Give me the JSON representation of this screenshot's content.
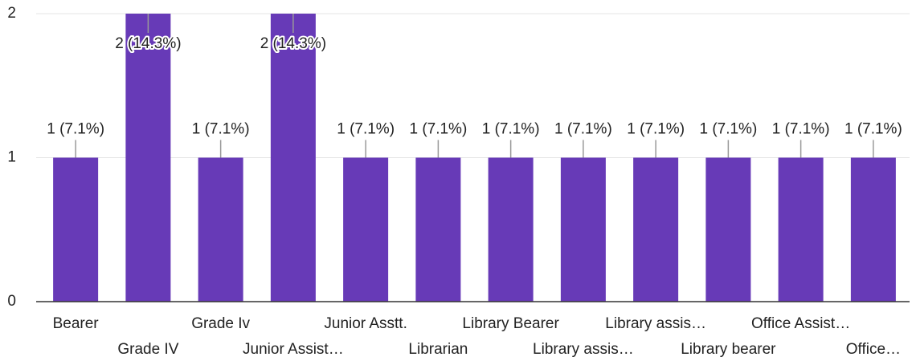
{
  "chart_data": {
    "type": "bar",
    "categories": [
      "Bearer",
      "Grade IV",
      "Grade Iv",
      "Junior Assist…",
      "Junior Asstt.",
      "Librarian",
      "Library Bearer",
      "Library assis…",
      "Library assis…",
      "Library bearer",
      "Office Assist…",
      "Office…"
    ],
    "values": [
      1,
      2,
      1,
      2,
      1,
      1,
      1,
      1,
      1,
      1,
      1,
      1
    ],
    "value_labels": [
      "1 (7.1%)",
      "2 (14.3%)",
      "1 (7.1%)",
      "2 (14.3%)",
      "1 (7.1%)",
      "1 (7.1%)",
      "1 (7.1%)",
      "1 (7.1%)",
      "1 (7.1%)",
      "1 (7.1%)",
      "1 (7.1%)",
      "1 (7.1%)"
    ],
    "color": "#673ab7",
    "ylim": [
      0,
      2
    ],
    "yticks": [
      0,
      1,
      2
    ],
    "grid": true
  }
}
